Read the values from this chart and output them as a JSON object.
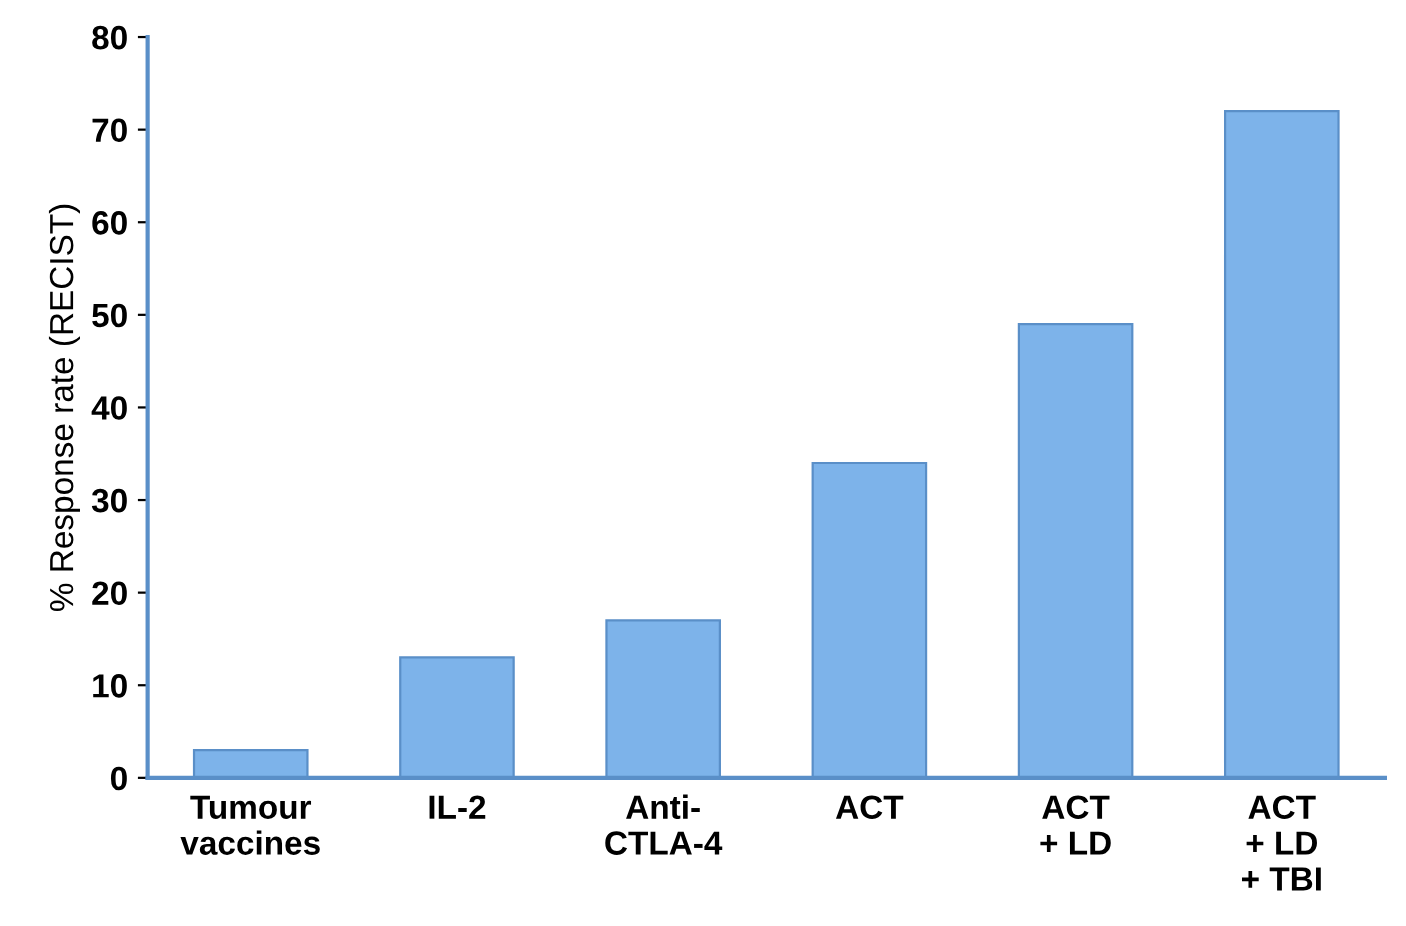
{
  "chart_data": {
    "type": "bar",
    "ylabel": "% Response rate (RECIST)",
    "categories": [
      "Tumour\nvaccines",
      "IL-2",
      "Anti-\nCTLA-4",
      "ACT",
      "ACT\n+ LD",
      "ACT\n+ LD\n+ TBI"
    ],
    "values": [
      3,
      13,
      17,
      34,
      49,
      72
    ],
    "color": "#7db3ea",
    "ylim": [
      0,
      80
    ],
    "yticks": [
      0,
      10,
      20,
      30,
      40,
      50,
      60,
      70,
      80
    ],
    "grid": false,
    "legend": false
  }
}
